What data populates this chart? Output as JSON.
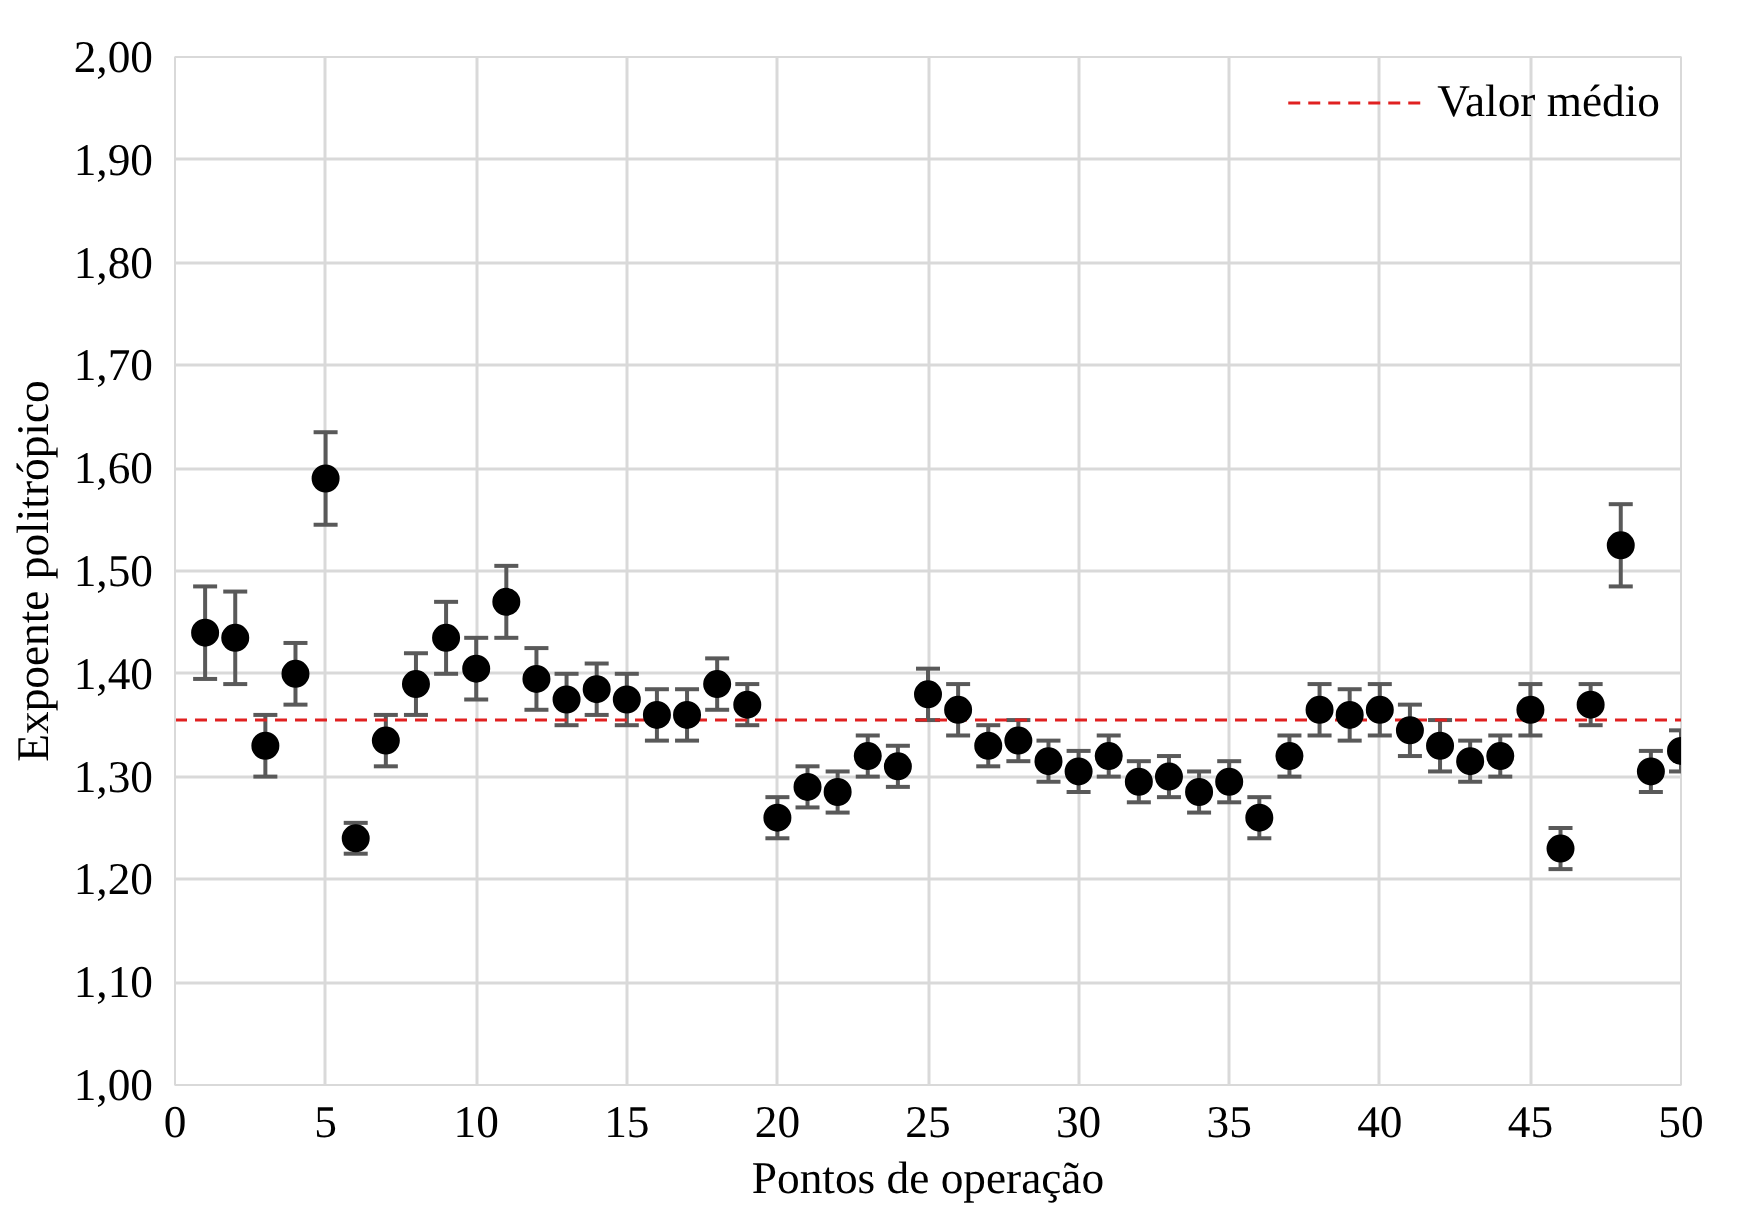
{
  "chart_data": {
    "type": "scatter",
    "xlabel": "Pontos de operação",
    "ylabel": "Expoente politrópico",
    "x": [
      1,
      2,
      3,
      4,
      5,
      6,
      7,
      8,
      9,
      10,
      11,
      12,
      13,
      14,
      15,
      16,
      17,
      18,
      19,
      20,
      21,
      22,
      23,
      24,
      25,
      26,
      27,
      28,
      29,
      30,
      31,
      32,
      33,
      34,
      35,
      36,
      37,
      38,
      39,
      40,
      41,
      42,
      43,
      44,
      45,
      46,
      47,
      48,
      49,
      50
    ],
    "series": [
      {
        "color": "#000000",
        "values": [
          1.44,
          1.435,
          1.33,
          1.4,
          1.59,
          1.24,
          1.335,
          1.39,
          1.435,
          1.405,
          1.47,
          1.395,
          1.375,
          1.385,
          1.375,
          1.36,
          1.36,
          1.39,
          1.37,
          1.26,
          1.29,
          1.285,
          1.32,
          1.31,
          1.38,
          1.365,
          1.33,
          1.335,
          1.315,
          1.305,
          1.32,
          1.295,
          1.3,
          1.285,
          1.295,
          1.26,
          1.32,
          1.365,
          1.36,
          1.365,
          1.345,
          1.33,
          1.315,
          1.32,
          1.365,
          1.23,
          1.37,
          1.525,
          1.305,
          1.325
        ],
        "errors": [
          0.045,
          0.045,
          0.03,
          0.03,
          0.045,
          0.015,
          0.025,
          0.03,
          0.035,
          0.03,
          0.035,
          0.03,
          0.025,
          0.025,
          0.025,
          0.025,
          0.025,
          0.025,
          0.02,
          0.02,
          0.02,
          0.02,
          0.02,
          0.02,
          0.025,
          0.025,
          0.02,
          0.02,
          0.02,
          0.02,
          0.02,
          0.02,
          0.02,
          0.02,
          0.02,
          0.02,
          0.02,
          0.025,
          0.025,
          0.025,
          0.025,
          0.025,
          0.02,
          0.02,
          0.025,
          0.02,
          0.02,
          0.04,
          0.02,
          0.02
        ]
      }
    ],
    "marker": "circle",
    "xlim": [
      0,
      50
    ],
    "xticks": [
      0,
      5,
      10,
      15,
      20,
      25,
      30,
      35,
      40,
      45,
      50
    ],
    "ylim": [
      1.0,
      2.0
    ],
    "yticks": [
      {
        "value": 1.0,
        "label": "1,00"
      },
      {
        "value": 1.1,
        "label": "1,10"
      },
      {
        "value": 1.2,
        "label": "1,20"
      },
      {
        "value": 1.3,
        "label": "1,30"
      },
      {
        "value": 1.4,
        "label": "1,40"
      },
      {
        "value": 1.5,
        "label": "1,50"
      },
      {
        "value": 1.6,
        "label": "1,60"
      },
      {
        "value": 1.7,
        "label": "1,70"
      },
      {
        "value": 1.8,
        "label": "1,80"
      },
      {
        "value": 1.9,
        "label": "1,90"
      },
      {
        "value": 2.0,
        "label": "2,00"
      }
    ],
    "ref_lines": [
      {
        "axis": "y",
        "value": 1.355,
        "label": "Valor médio",
        "color": "#e02020",
        "line_style": "dashed"
      }
    ],
    "grid": true,
    "legend": "top right"
  }
}
